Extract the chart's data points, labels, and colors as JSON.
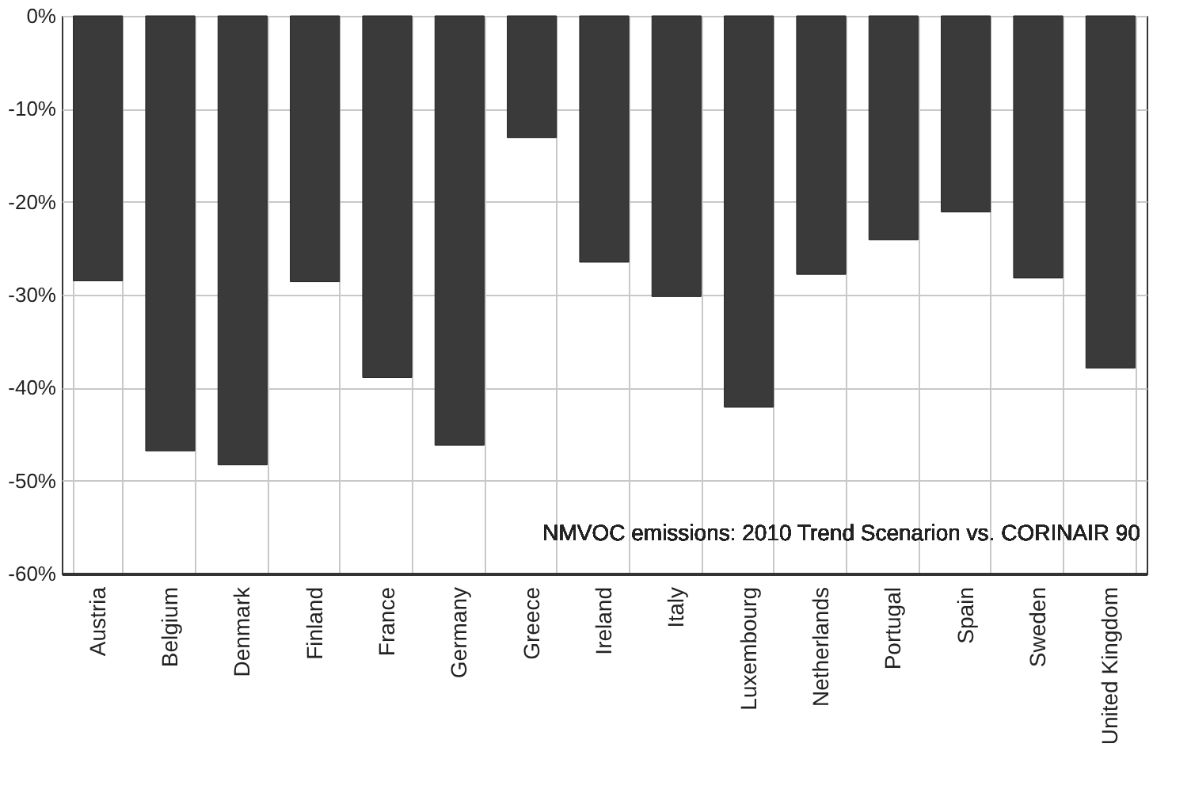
{
  "chart_data": {
    "type": "bar",
    "categories": [
      "Austria",
      "Belgium",
      "Denmark",
      "Finland",
      "France",
      "Germany",
      "Greece",
      "Ireland",
      "Italy",
      "Luxembourg",
      "Netherlands",
      "Portugal",
      "Spain",
      "Sweden",
      "United Kingdom"
    ],
    "values": [
      -28.5,
      -46.8,
      -48.3,
      -28.6,
      -38.9,
      -46.2,
      -13.1,
      -26.5,
      -30.2,
      -42.1,
      -27.8,
      -24.1,
      -21.1,
      -28.2,
      -37.9
    ],
    "color": "#3a3a3a",
    "ylim": [
      -60,
      0
    ],
    "yticks": [
      {
        "value": 0,
        "label": "0%"
      },
      {
        "value": -10,
        "label": "-10%"
      },
      {
        "value": -20,
        "label": "-20%"
      },
      {
        "value": -30,
        "label": "-30%"
      },
      {
        "value": -40,
        "label": "-40%"
      },
      {
        "value": -50,
        "label": "-50%"
      },
      {
        "value": -60,
        "label": "-60%"
      }
    ],
    "grid": true,
    "annotations": [
      "NMVOC emissions: 2010 Trend Scenarion vs. CORINAIR 90"
    ]
  }
}
